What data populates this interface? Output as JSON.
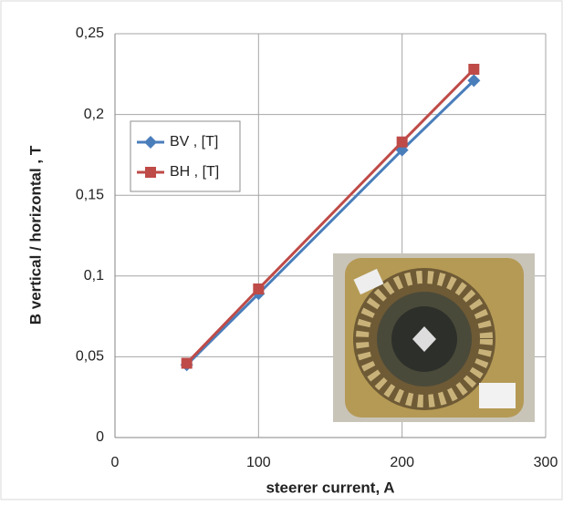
{
  "chart_data": {
    "type": "line",
    "xlabel": "steerer current, A",
    "ylabel": "B vertical / horizontal , T",
    "x": [
      50,
      100,
      200,
      250
    ],
    "series": [
      {
        "name": "BV , [T]",
        "color": "#4a7ebb",
        "marker": "diamond",
        "values": [
          0.045,
          0.089,
          0.178,
          0.221
        ]
      },
      {
        "name": "BH , [T]",
        "color": "#be4b48",
        "marker": "square",
        "values": [
          0.046,
          0.092,
          0.183,
          0.228
        ]
      }
    ],
    "xlim": [
      0,
      300
    ],
    "xticks": [
      0,
      100,
      200,
      300
    ],
    "ylim": [
      0,
      0.25
    ],
    "yticks": [
      0,
      {
        "value": 0.05,
        "label": "0,05"
      },
      {
        "value": 0.1,
        "label": "0,1"
      },
      {
        "value": 0.15,
        "label": "0,15"
      },
      {
        "value": 0.2,
        "label": "0,2"
      },
      {
        "value": 0.25,
        "label": "0,25"
      }
    ],
    "grid": true,
    "legend": "upper-left"
  }
}
